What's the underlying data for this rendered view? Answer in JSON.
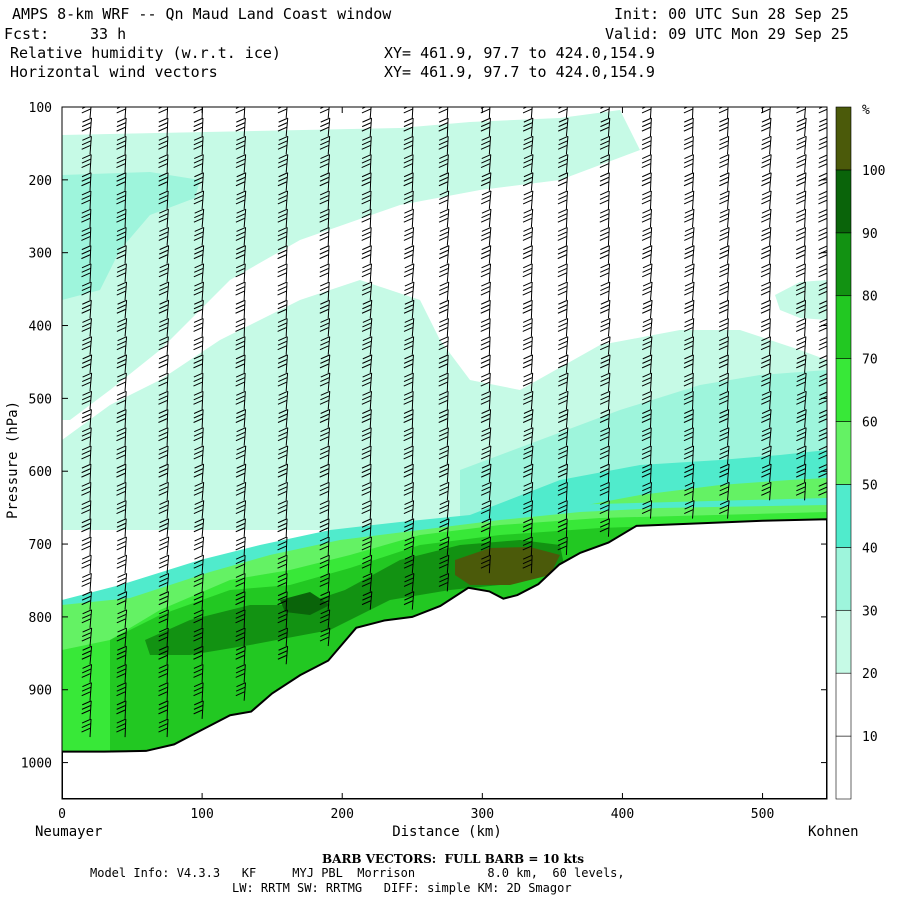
{
  "header": {
    "title": "AMPS 8-km WRF -- Qn Maud Land Coast window",
    "init": "Init: 00 UTC Sun 28 Sep 25",
    "fcst_label": "Fcst:",
    "fcst_value": "33 h",
    "valid": "Valid: 09 UTC Mon 29 Sep 25",
    "field1": "Relative humidity (w.r.t. ice)",
    "field2": "Horizontal wind vectors",
    "xy1": "XY= 461.9, 97.7 to 424.0,154.9",
    "xy2": "XY= 461.9, 97.7 to 424.0,154.9"
  },
  "footer": {
    "barb_note": "BARB VECTORS:  FULL BARB = 10 kts",
    "model_info": "Model Info: V4.3.3   KF     MYJ PBL  Morrison          8.0 km,  60 levels,",
    "physics": "LW: RRTM SW: RRTMG   DIFF: simple KM: 2D Smagor"
  },
  "colors": {
    "rh_10": "#ffffff",
    "rh_30": "#c6fae6",
    "rh_40": "#9ef5dc",
    "rh_50": "#50ebcc",
    "rh_60": "#64f264",
    "rh_70": "#38e838",
    "rh_80": "#22c822",
    "rh_90": "#129212",
    "rh_100": "#0a640a",
    "rh_100p": "#4b5a0a",
    "terrain_line": "#000000"
  },
  "chart_data": {
    "type": "vertical-cross-section",
    "title": "Relative humidity (w.r.t. ice)",
    "xlabel": "Distance (km)",
    "ylabel": "Pressure (hPa)",
    "xlim": [
      0,
      546
    ],
    "ylim": [
      1050,
      100
    ],
    "x_ticks": [
      0,
      100,
      200,
      300,
      400,
      500
    ],
    "y_ticks": [
      100,
      200,
      300,
      400,
      500,
      600,
      700,
      800,
      900,
      1000
    ],
    "x_endpoints": {
      "left": "Neumayer",
      "right": "Kohnen"
    },
    "colorbar": {
      "unit": "%",
      "levels": [
        10,
        20,
        30,
        40,
        50,
        60,
        70,
        80,
        90,
        100
      ]
    },
    "terrain_surface_hPa": [
      [
        0,
        985
      ],
      [
        30,
        985
      ],
      [
        60,
        984
      ],
      [
        80,
        975
      ],
      [
        100,
        955
      ],
      [
        120,
        935
      ],
      [
        135,
        930
      ],
      [
        150,
        905
      ],
      [
        170,
        880
      ],
      [
        190,
        860
      ],
      [
        210,
        815
      ],
      [
        230,
        805
      ],
      [
        250,
        800
      ],
      [
        270,
        785
      ],
      [
        290,
        760
      ],
      [
        305,
        765
      ],
      [
        315,
        775
      ],
      [
        325,
        770
      ],
      [
        340,
        755
      ],
      [
        355,
        728
      ],
      [
        370,
        712
      ],
      [
        390,
        698
      ],
      [
        410,
        675
      ],
      [
        450,
        672
      ],
      [
        500,
        668
      ],
      [
        546,
        666
      ]
    ],
    "barb_columns_km": [
      20,
      45,
      75,
      100,
      130,
      160,
      190,
      220,
      250,
      275,
      305,
      335,
      360,
      390,
      420,
      450,
      475,
      505,
      530,
      546
    ],
    "barb_levels_hPa": [
      115,
      140,
      165,
      190,
      215,
      240,
      265,
      290,
      315,
      340,
      365,
      390,
      415,
      440,
      465,
      490,
      515,
      540,
      565,
      590,
      615,
      640,
      665,
      690,
      715,
      740,
      765,
      790,
      815,
      840,
      865,
      890,
      915,
      940,
      965,
      990
    ]
  }
}
